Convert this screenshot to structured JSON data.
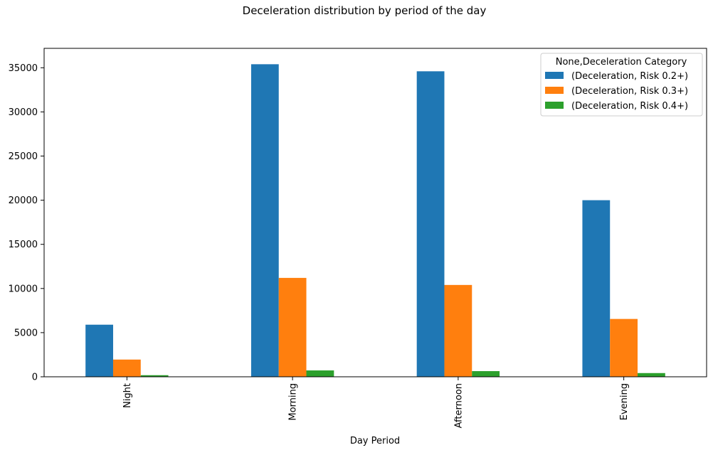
{
  "chart_data": {
    "type": "bar",
    "title": "Deceleration distribution by period of the day",
    "xlabel": "Day Period",
    "ylabel": "",
    "categories": [
      "Night",
      "Morning",
      "Afternoon",
      "Evening"
    ],
    "series": [
      {
        "name": "(Deceleration, Risk 0.2+)",
        "color": "#1f77b4",
        "values": [
          5900,
          35400,
          34600,
          20000
        ]
      },
      {
        "name": "(Deceleration, Risk 0.3+)",
        "color": "#ff7f0e",
        "values": [
          1950,
          11200,
          10400,
          6550
        ]
      },
      {
        "name": "(Deceleration, Risk 0.4+)",
        "color": "#2ca02c",
        "values": [
          180,
          720,
          640,
          420
        ]
      }
    ],
    "legend_title": "None,Deceleration Category",
    "legend_position": "top-right",
    "ylim": [
      0,
      37200
    ],
    "yticks": [
      0,
      5000,
      10000,
      15000,
      20000,
      25000,
      30000,
      35000
    ],
    "grid": false
  }
}
